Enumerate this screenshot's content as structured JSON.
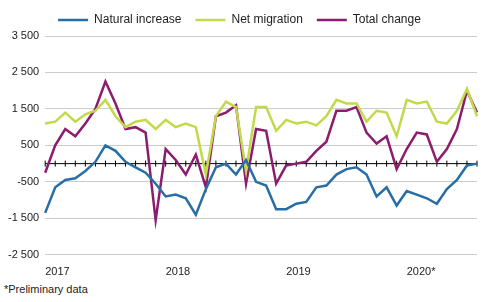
{
  "chart_data": {
    "type": "line",
    "footnote": "*Preliminary data",
    "categories": [
      "2017",
      null,
      null,
      null,
      null,
      null,
      null,
      null,
      null,
      null,
      null,
      null,
      "2018",
      null,
      null,
      null,
      null,
      null,
      null,
      null,
      null,
      null,
      null,
      null,
      "2019",
      null,
      null,
      null,
      null,
      null,
      null,
      null,
      null,
      null,
      null,
      null,
      "2020*",
      null,
      null,
      null,
      null,
      null,
      null,
      null
    ],
    "series": [
      {
        "name": "Natural increase",
        "color": "#276ea6",
        "values": [
          -1350,
          -650,
          -450,
          -400,
          -200,
          50,
          500,
          350,
          50,
          -100,
          -250,
          -550,
          -900,
          -850,
          -950,
          -1400,
          -700,
          -100,
          0,
          -300,
          100,
          -500,
          -600,
          -1250,
          -1250,
          -1100,
          -1050,
          -650,
          -600,
          -300,
          -150,
          -100,
          -300,
          -900,
          -650,
          -1150,
          -750,
          -850,
          -950,
          -1100,
          -700,
          -450,
          -50,
          0
        ]
      },
      {
        "name": "Net migration",
        "color": "#c3d94a",
        "values": [
          1100,
          1150,
          1400,
          1150,
          1350,
          1450,
          1750,
          1300,
          1000,
          1150,
          1200,
          950,
          1200,
          1000,
          1100,
          1000,
          -300,
          1300,
          1700,
          1550,
          -200,
          1550,
          1550,
          900,
          1200,
          1100,
          1150,
          1050,
          1300,
          1750,
          1650,
          1650,
          1150,
          1450,
          1400,
          750,
          1750,
          1650,
          1700,
          1150,
          1100,
          1450,
          2050,
          1300
        ]
      },
      {
        "name": "Total change",
        "color": "#8c1c6e",
        "values": [
          -250,
          500,
          950,
          750,
          1100,
          1500,
          2250,
          1650,
          950,
          1000,
          850,
          -1550,
          400,
          100,
          -300,
          250,
          -650,
          1300,
          1400,
          1600,
          -550,
          950,
          900,
          -550,
          -50,
          0,
          50,
          350,
          600,
          1450,
          1450,
          1550,
          850,
          550,
          750,
          -150,
          400,
          850,
          800,
          50,
          400,
          950,
          2000,
          1400
        ]
      }
    ],
    "ylim": [
      -2500,
      3500
    ],
    "yticks": [
      {
        "value": -2500,
        "label": "-2 500"
      },
      {
        "value": -1500,
        "label": "-1 500"
      },
      -500,
      500,
      {
        "value": 1500,
        "label": "1 500"
      },
      {
        "value": 2500,
        "label": "2 500"
      },
      {
        "value": 3500,
        "label": "3 500"
      }
    ],
    "grid": true,
    "legend": "top"
  }
}
